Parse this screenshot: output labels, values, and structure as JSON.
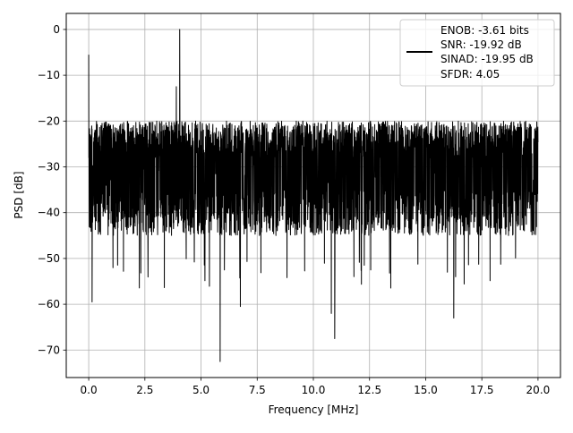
{
  "chart_data": {
    "type": "line",
    "title": "",
    "xlabel": "Frequency [MHz]",
    "ylabel": "PSD [dB]",
    "xlim": [
      -1.0,
      21.0
    ],
    "ylim": [
      -76,
      3.5
    ],
    "xticks": [
      0.0,
      2.5,
      5.0,
      7.5,
      10.0,
      12.5,
      15.0,
      17.5,
      20.0
    ],
    "xtick_labels": [
      "0.0",
      "2.5",
      "5.0",
      "7.5",
      "10.0",
      "12.5",
      "15.0",
      "17.5",
      "20.0"
    ],
    "yticks": [
      0,
      -10,
      -20,
      -30,
      -40,
      -50,
      -60,
      -70
    ],
    "ytick_labels": [
      "0",
      "−10",
      "−20",
      "−30",
      "−40",
      "−50",
      "−60",
      "−70"
    ],
    "grid": true,
    "legend_position": "top-right",
    "legend_lines": [
      "ENOB: -3.61 bits",
      "SNR: -19.92 dB",
      "SINAD: -19.95 dB",
      "SFDR: 4.05"
    ],
    "series": [
      {
        "color": "#000000",
        "x_range": [
          0.0,
          20.0
        ],
        "typical_range_db": [
          -45,
          -20
        ],
        "peaks": [
          {
            "x": 0.0,
            "y": -5.5
          },
          {
            "x": 4.05,
            "y": 0.0
          },
          {
            "x": 3.9,
            "y": -12.5
          }
        ],
        "dips": [
          {
            "x": 5.85,
            "y": -72.5
          },
          {
            "x": 10.95,
            "y": -67.5
          },
          {
            "x": 10.8,
            "y": -62.0
          },
          {
            "x": 16.25,
            "y": -63.0
          },
          {
            "x": 6.75,
            "y": -60.5
          },
          {
            "x": 0.15,
            "y": -59.5
          }
        ]
      }
    ]
  }
}
